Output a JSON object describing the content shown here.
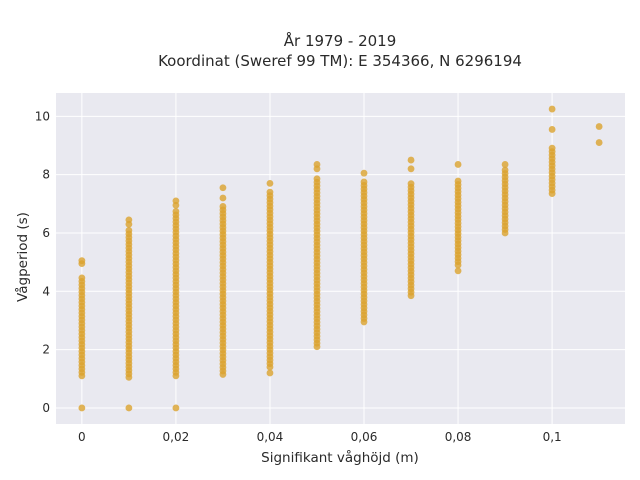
{
  "chart_data": {
    "type": "scatter",
    "title_lines": [
      "År 1979 - 2019",
      "Koordinat (Sweref 99 TM): E 354366, N 6296194"
    ],
    "xlabel": "Signifikant våghöjd (m)",
    "ylabel": "Vågperiod (s)",
    "xlim": [
      -0.0055,
      0.1155
    ],
    "ylim": [
      -0.55,
      10.8
    ],
    "x_ticks": [
      0,
      0.02,
      0.04,
      0.06,
      0.08,
      0.1
    ],
    "x_tick_labels": [
      "0",
      "0,02",
      "0,04",
      "0,06",
      "0,08",
      "0,1"
    ],
    "y_ticks": [
      0,
      2,
      4,
      6,
      8,
      10
    ],
    "y_tick_labels": [
      "0",
      "2",
      "4",
      "6",
      "8",
      "10"
    ],
    "grid": true,
    "colors": {
      "background": "#e9e9f0",
      "grid": "#ffffff",
      "marker": "#dba32e"
    },
    "columns": [
      {
        "x": 0,
        "ymin": 1.1,
        "ymax": 4.55,
        "extra": [
          0.0,
          4.95,
          5.05
        ]
      },
      {
        "x": 0.01,
        "ymin": 1.05,
        "ymax": 6.2,
        "extra": [
          0.0,
          6.3,
          6.45
        ]
      },
      {
        "x": 0.02,
        "ymin": 1.1,
        "ymax": 6.8,
        "extra": [
          0.0,
          6.95,
          7.1
        ]
      },
      {
        "x": 0.03,
        "ymin": 1.15,
        "ymax": 7.0,
        "extra": [
          7.2,
          7.55
        ]
      },
      {
        "x": 0.04,
        "ymin": 1.4,
        "ymax": 7.5,
        "extra": [
          1.2,
          7.7
        ]
      },
      {
        "x": 0.05,
        "ymin": 2.1,
        "ymax": 7.95,
        "extra": [
          8.2,
          8.35
        ]
      },
      {
        "x": 0.06,
        "ymin": 2.95,
        "ymax": 7.8,
        "extra": [
          8.05
        ]
      },
      {
        "x": 0.07,
        "ymin": 3.85,
        "ymax": 7.75,
        "extra": [
          8.2,
          8.5
        ]
      },
      {
        "x": 0.08,
        "ymin": 4.9,
        "ymax": 7.85,
        "extra": [
          4.7,
          8.35
        ]
      },
      {
        "x": 0.09,
        "ymin": 6.0,
        "ymax": 8.2,
        "extra": [
          8.35
        ]
      },
      {
        "x": 0.1,
        "ymin": 7.35,
        "ymax": 9.0,
        "extra": [
          9.55,
          10.25
        ]
      },
      {
        "x": 0.11,
        "ymin": 9.1,
        "ymax": 9.2,
        "extra": [
          9.65
        ]
      }
    ]
  }
}
